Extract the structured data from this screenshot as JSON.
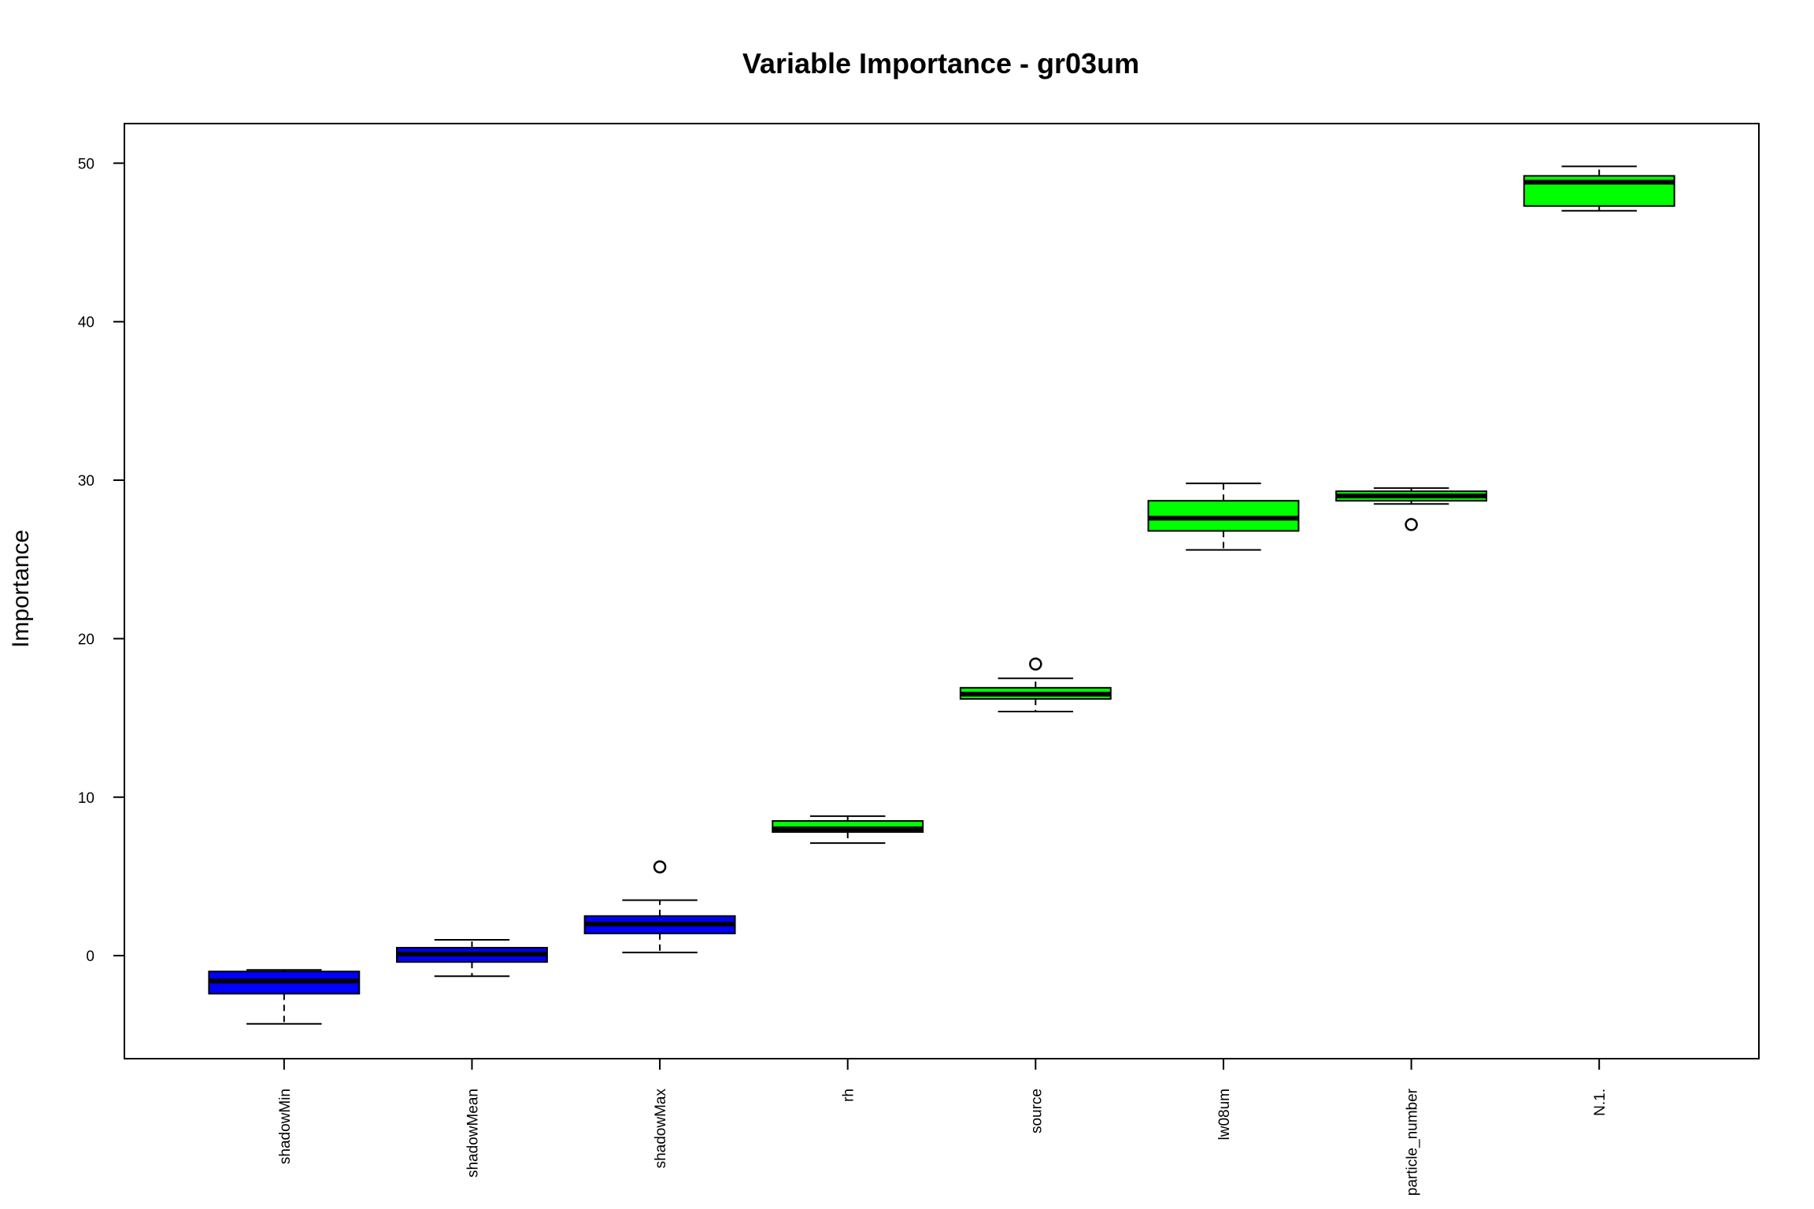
{
  "chart_data": {
    "type": "boxplot",
    "title": "Variable Importance - gr03um",
    "xlabel": "",
    "ylabel": "Importance",
    "ylim": [
      -6.5,
      52.5
    ],
    "yticks": [
      0,
      10,
      20,
      30,
      40,
      50
    ],
    "grid": false,
    "legend": "none",
    "categories": [
      "shadowMin",
      "shadowMean",
      "shadowMax",
      "rh",
      "source",
      "lw08um",
      "particle_number",
      "N.1."
    ],
    "boxes": [
      {
        "name": "shadowMin",
        "whisker_low": -4.3,
        "q1": -2.4,
        "median": -1.6,
        "q3": -1.0,
        "whisker_high": -0.9,
        "outliers": [],
        "color": "#0000ff"
      },
      {
        "name": "shadowMean",
        "whisker_low": -1.3,
        "q1": -0.4,
        "median": 0.1,
        "q3": 0.5,
        "whisker_high": 1.0,
        "outliers": [],
        "color": "#0000ff"
      },
      {
        "name": "shadowMax",
        "whisker_low": 0.2,
        "q1": 1.4,
        "median": 2.0,
        "q3": 2.5,
        "whisker_high": 3.5,
        "outliers": [
          5.6
        ],
        "color": "#0000ff"
      },
      {
        "name": "rh",
        "whisker_low": 7.1,
        "q1": 7.8,
        "median": 8.0,
        "q3": 8.5,
        "whisker_high": 8.8,
        "outliers": [],
        "color": "#00ff00"
      },
      {
        "name": "source",
        "whisker_low": 15.4,
        "q1": 16.2,
        "median": 16.5,
        "q3": 16.9,
        "whisker_high": 17.5,
        "outliers": [
          18.4
        ],
        "color": "#00ff00"
      },
      {
        "name": "lw08um",
        "whisker_low": 25.6,
        "q1": 26.8,
        "median": 27.6,
        "q3": 28.7,
        "whisker_high": 29.8,
        "outliers": [],
        "color": "#00ff00"
      },
      {
        "name": "particle_number",
        "whisker_low": 28.5,
        "q1": 28.7,
        "median": 29.0,
        "q3": 29.3,
        "whisker_high": 29.5,
        "outliers": [
          27.2
        ],
        "color": "#00ff00"
      },
      {
        "name": "N.1.",
        "whisker_low": 47.0,
        "q1": 47.3,
        "median": 48.8,
        "q3": 49.2,
        "whisker_high": 49.8,
        "outliers": [],
        "color": "#00ff00"
      }
    ]
  }
}
